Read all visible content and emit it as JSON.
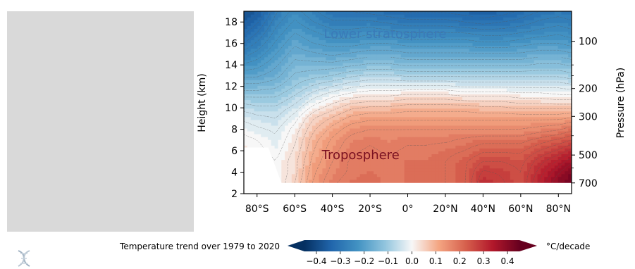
{
  "chart_data": {
    "type": "heatmap",
    "subtype": "filled-contour",
    "title": "",
    "xlabel": "",
    "ylabel": "Height (km)",
    "y2label": "Pressure (hPa)",
    "x_ticks": [
      "80°S",
      "60°S",
      "40°S",
      "20°S",
      "0°",
      "20°N",
      "40°N",
      "60°N",
      "80°N"
    ],
    "x_tick_values": [
      -80,
      -60,
      -40,
      -20,
      0,
      20,
      40,
      60,
      80
    ],
    "xlim": [
      -87,
      87
    ],
    "y_ticks": [
      2,
      4,
      6,
      8,
      10,
      12,
      14,
      16,
      18
    ],
    "ylim": [
      2,
      19
    ],
    "y2_ticks": [
      "100",
      "200",
      "300",
      "500",
      "700"
    ],
    "y2_tick_heights_km": [
      16.2,
      11.8,
      9.2,
      5.6,
      3.0
    ],
    "annotations": [
      {
        "text": "Lower stratosphere",
        "x": -12,
        "y": 16.5,
        "color": "#3a7ab8"
      },
      {
        "text": "Troposphere",
        "x": -25,
        "y": 5.2,
        "color": "#7a1020"
      }
    ],
    "colorbar": {
      "label": "Temperature trend over 1979 to 2020",
      "units": "°C/decade",
      "ticks": [
        "−0.4",
        "−0.3",
        "−0.2",
        "−0.1",
        "0.0",
        "0.1",
        "0.2",
        "0.3",
        "0.4"
      ],
      "tick_values": [
        -0.4,
        -0.3,
        -0.2,
        -0.1,
        0.0,
        0.1,
        0.2,
        0.3,
        0.4
      ],
      "range": [
        -0.45,
        0.45
      ],
      "extend": "both",
      "colormap": "RdBu_r"
    },
    "lat": [
      -87,
      -80,
      -70,
      -60,
      -50,
      -40,
      -30,
      -20,
      -10,
      0,
      10,
      20,
      30,
      40,
      50,
      60,
      70,
      80,
      87
    ],
    "height": [
      3,
      4,
      5,
      6,
      7,
      8,
      9,
      10,
      11,
      12,
      13,
      14,
      15,
      16,
      17,
      18,
      19
    ],
    "values": [
      [
        0.05,
        0.02,
        0.0,
        0.05,
        0.13,
        0.17,
        0.19,
        0.2,
        0.18,
        0.19,
        0.19,
        0.2,
        0.22,
        0.3,
        0.28,
        0.25,
        0.33,
        0.4,
        0.44
      ],
      [
        0.04,
        0.02,
        0.0,
        0.04,
        0.12,
        0.16,
        0.18,
        0.19,
        0.18,
        0.19,
        0.19,
        0.2,
        0.22,
        0.28,
        0.27,
        0.25,
        0.31,
        0.37,
        0.41
      ],
      [
        0.03,
        0.02,
        0.0,
        0.04,
        0.11,
        0.15,
        0.18,
        0.18,
        0.18,
        0.19,
        0.19,
        0.2,
        0.22,
        0.25,
        0.25,
        0.24,
        0.29,
        0.33,
        0.37
      ],
      [
        0.02,
        0.01,
        -0.01,
        0.03,
        0.1,
        0.14,
        0.17,
        0.18,
        0.17,
        0.18,
        0.18,
        0.19,
        0.2,
        0.22,
        0.22,
        0.22,
        0.25,
        0.28,
        0.31
      ],
      [
        0.01,
        0.0,
        -0.02,
        0.02,
        0.09,
        0.13,
        0.16,
        0.17,
        0.16,
        0.17,
        0.17,
        0.17,
        0.18,
        0.19,
        0.19,
        0.19,
        0.21,
        0.23,
        0.25
      ],
      [
        -0.01,
        -0.02,
        -0.03,
        0.01,
        0.07,
        0.11,
        0.14,
        0.15,
        0.15,
        0.15,
        0.15,
        0.15,
        0.15,
        0.15,
        0.15,
        0.15,
        0.16,
        0.17,
        0.19
      ],
      [
        -0.03,
        -0.04,
        -0.05,
        -0.01,
        0.05,
        0.08,
        0.11,
        0.12,
        0.12,
        0.12,
        0.12,
        0.12,
        0.12,
        0.12,
        0.12,
        0.12,
        0.12,
        0.12,
        0.13
      ],
      [
        -0.06,
        -0.07,
        -0.07,
        -0.04,
        0.01,
        0.04,
        0.07,
        0.08,
        0.08,
        0.09,
        0.09,
        0.09,
        0.09,
        0.08,
        0.08,
        0.07,
        0.07,
        0.07,
        0.07
      ],
      [
        -0.1,
        -0.1,
        -0.1,
        -0.07,
        -0.03,
        0.0,
        0.02,
        0.03,
        0.03,
        0.04,
        0.04,
        0.04,
        0.03,
        0.03,
        0.03,
        0.02,
        0.02,
        0.01,
        0.01
      ],
      [
        -0.14,
        -0.14,
        -0.13,
        -0.1,
        -0.07,
        -0.05,
        -0.03,
        -0.02,
        -0.02,
        -0.02,
        -0.02,
        -0.02,
        -0.03,
        -0.03,
        -0.03,
        -0.03,
        -0.03,
        -0.03,
        -0.04
      ],
      [
        -0.18,
        -0.18,
        -0.16,
        -0.12,
        -0.11,
        -0.1,
        -0.08,
        -0.07,
        -0.07,
        -0.08,
        -0.08,
        -0.08,
        -0.08,
        -0.08,
        -0.08,
        -0.08,
        -0.08,
        -0.08,
        -0.09
      ],
      [
        -0.22,
        -0.21,
        -0.18,
        -0.14,
        -0.14,
        -0.14,
        -0.13,
        -0.12,
        -0.12,
        -0.13,
        -0.13,
        -0.13,
        -0.13,
        -0.13,
        -0.13,
        -0.13,
        -0.12,
        -0.12,
        -0.13
      ],
      [
        -0.26,
        -0.24,
        -0.2,
        -0.16,
        -0.17,
        -0.18,
        -0.17,
        -0.16,
        -0.16,
        -0.17,
        -0.17,
        -0.17,
        -0.17,
        -0.17,
        -0.17,
        -0.17,
        -0.16,
        -0.16,
        -0.17
      ],
      [
        -0.3,
        -0.27,
        -0.22,
        -0.18,
        -0.2,
        -0.21,
        -0.21,
        -0.2,
        -0.2,
        -0.21,
        -0.21,
        -0.21,
        -0.21,
        -0.22,
        -0.22,
        -0.21,
        -0.2,
        -0.2,
        -0.21
      ],
      [
        -0.33,
        -0.3,
        -0.24,
        -0.2,
        -0.22,
        -0.24,
        -0.24,
        -0.23,
        -0.24,
        -0.25,
        -0.25,
        -0.25,
        -0.25,
        -0.26,
        -0.26,
        -0.25,
        -0.24,
        -0.23,
        -0.24
      ],
      [
        -0.36,
        -0.33,
        -0.26,
        -0.22,
        -0.25,
        -0.27,
        -0.27,
        -0.27,
        -0.28,
        -0.29,
        -0.29,
        -0.29,
        -0.3,
        -0.31,
        -0.3,
        -0.29,
        -0.27,
        -0.26,
        -0.27
      ],
      [
        -0.39,
        -0.36,
        -0.28,
        -0.24,
        -0.27,
        -0.3,
        -0.3,
        -0.31,
        -0.32,
        -0.33,
        -0.33,
        -0.33,
        -0.34,
        -0.35,
        -0.34,
        -0.32,
        -0.3,
        -0.29,
        -0.3
      ]
    ]
  }
}
